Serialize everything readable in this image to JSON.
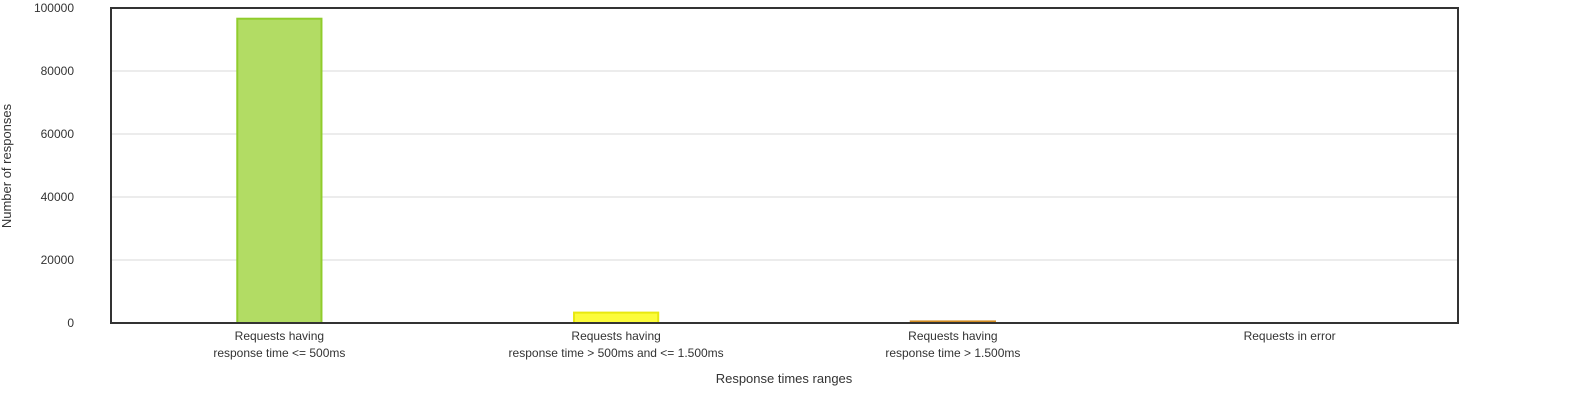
{
  "chart_data": {
    "type": "bar",
    "title": "",
    "xlabel": "Response times ranges",
    "ylabel": "Number of responses",
    "ylim": [
      0,
      100000
    ],
    "yticks": [
      0,
      20000,
      40000,
      60000,
      80000,
      100000
    ],
    "grid": true,
    "legend": "none",
    "categories": [
      [
        "Requests having",
        "response time <= 500ms"
      ],
      [
        "Requests having",
        "response time > 500ms and <= 1.500ms"
      ],
      [
        "Requests having",
        "response time > 1.500ms"
      ],
      [
        "Requests in error"
      ]
    ],
    "values": [
      96600,
      3300,
      500,
      0
    ],
    "colors": [
      "#b2dc64",
      "#fcfc3a",
      "#ec9a2c",
      "#e64a3a"
    ],
    "border_colors": [
      "#90cc2c",
      "#e8e810",
      "#d08a20",
      "#c83020"
    ]
  }
}
